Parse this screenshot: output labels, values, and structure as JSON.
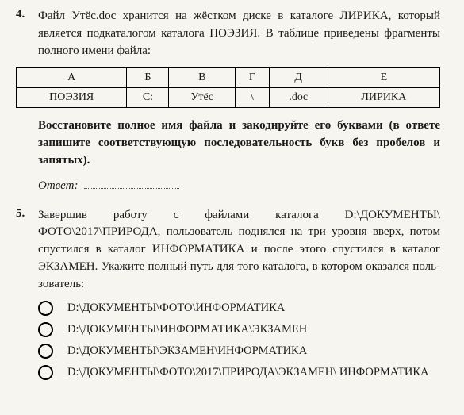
{
  "q4": {
    "number": "4.",
    "text_parts": {
      "p1": "Файл Утёс.doc хранится на жёстком диске в катало­ге ЛИРИКА, который является подкаталогом каталога ПОЭЗИЯ. В таблице приведены фрагменты полного имени файла:"
    },
    "table": {
      "headers": [
        "А",
        "Б",
        "В",
        "Г",
        "Д",
        "Е"
      ],
      "cells": [
        "ПОЭЗИЯ",
        "C:",
        "Утёс",
        "\\",
        ".doc",
        "ЛИРИКА"
      ]
    },
    "after": "Восстановите полное имя файла и закодируйте его буква­ми (в ответе запишите соответствующую последователь­ность букв без пробелов и запятых).",
    "answer_label": "Ответ:"
  },
  "q5": {
    "number": "5.",
    "text": "Завершив работу с файлами каталога D:\\ДОКУМЕНТЫ\\ ФОТО\\2017\\ПРИРОДА, пользователь поднялся на три уровня вверх, потом спустился в каталог ИНФОРМАТИКА и после этого спустился в каталог ЭКЗАМЕН. Укажите полный путь для того каталога, в котором оказался поль­зователь:",
    "options": [
      "D:\\ДОКУМЕНТЫ\\ФОТО\\ИНФОРМАТИКА",
      "D:\\ДОКУМЕНТЫ\\ИНФОРМАТИКА\\ЭКЗАМЕН",
      "D:\\ДОКУМЕНТЫ\\ЭКЗАМЕН\\ИНФОРМАТИКА",
      "D:\\ДОКУМЕНТЫ\\ФОТО\\2017\\ПРИРОДА\\ЭКЗАМЕН\\ ИНФОРМАТИКА"
    ]
  },
  "colors": {
    "background": "#f7f5f0",
    "text": "#1a1a1a",
    "border": "#000000"
  }
}
